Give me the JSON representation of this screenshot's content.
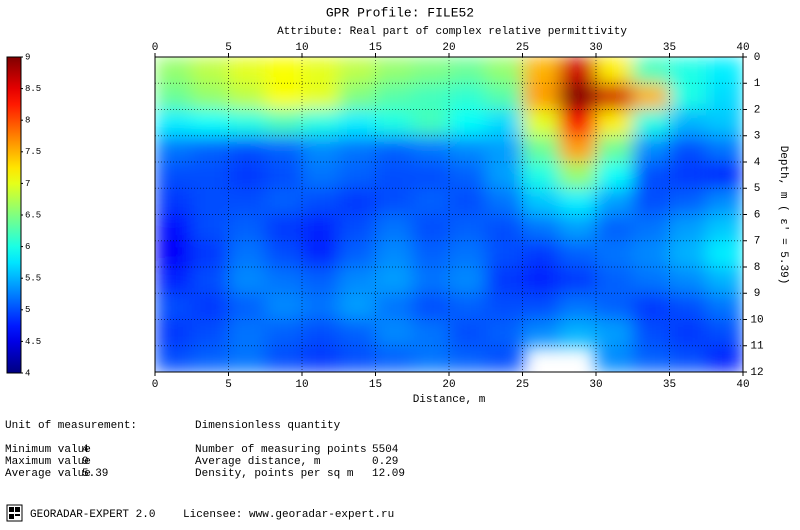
{
  "chart_data": {
    "type": "heatmap",
    "title": "GPR Profile: FILE52",
    "subtitle": "Attribute:  Real part of complex relative permittivity",
    "x_label": "Distance, m",
    "y_label": "Depth, m ( ε' = 5.39)",
    "colormap": "jet",
    "grid": true,
    "xlim": [
      0,
      40
    ],
    "ylim": [
      0,
      12
    ],
    "zlim": [
      4,
      9
    ],
    "xticks": [
      0,
      5,
      10,
      15,
      20,
      25,
      30,
      35,
      40
    ],
    "yticks": [
      0,
      1,
      2,
      3,
      4,
      5,
      6,
      7,
      8,
      9,
      10,
      11,
      12
    ],
    "zticks": [
      4,
      4.5,
      5,
      5.5,
      6,
      6.5,
      7,
      7.5,
      8,
      8.5,
      9
    ],
    "xbins": [
      0,
      2.5,
      5,
      7.5,
      10,
      12.5,
      15,
      17.5,
      20,
      22.5,
      25,
      27.5,
      30,
      32.5,
      35,
      37.5,
      40
    ],
    "ybins": [
      0,
      1,
      2,
      3,
      4,
      5,
      6,
      7,
      8,
      9,
      10,
      11,
      12
    ],
    "values": [
      [
        6.6,
        6.8,
        7.0,
        7.1,
        7.0,
        6.8,
        6.6,
        6.5,
        6.4,
        6.6,
        7.5,
        8.6,
        7.2,
        6.2,
        6.0,
        5.8
      ],
      [
        6.4,
        6.6,
        6.8,
        7.1,
        7.0,
        6.5,
        6.3,
        6.2,
        6.1,
        6.3,
        7.6,
        9.0,
        8.6,
        7.5,
        6.0,
        5.7
      ],
      [
        5.8,
        5.9,
        6.0,
        6.2,
        6.0,
        5.8,
        6.0,
        6.2,
        5.9,
        5.7,
        7.0,
        8.4,
        7.2,
        6.0,
        5.5,
        5.6
      ],
      [
        5.2,
        5.1,
        5.0,
        5.1,
        5.3,
        5.2,
        5.1,
        5.2,
        5.3,
        5.4,
        6.4,
        7.6,
        6.4,
        5.3,
        5.0,
        5.2
      ],
      [
        5.0,
        5.0,
        4.9,
        5.0,
        5.2,
        5.1,
        5.0,
        5.0,
        5.1,
        5.4,
        6.0,
        6.6,
        5.9,
        5.0,
        4.9,
        4.8
      ],
      [
        4.9,
        5.0,
        5.0,
        5.1,
        5.0,
        4.9,
        5.0,
        5.1,
        5.0,
        5.2,
        5.6,
        5.8,
        5.4,
        5.0,
        5.1,
        5.3
      ],
      [
        4.7,
        5.0,
        5.1,
        4.9,
        4.8,
        5.0,
        5.2,
        5.0,
        5.1,
        5.0,
        5.2,
        5.4,
        5.1,
        5.2,
        5.4,
        5.6
      ],
      [
        4.6,
        4.9,
        5.2,
        5.0,
        4.8,
        5.1,
        5.3,
        5.1,
        5.2,
        5.0,
        4.9,
        5.1,
        5.2,
        5.3,
        5.5,
        5.8
      ],
      [
        4.8,
        5.0,
        5.3,
        5.2,
        5.1,
        5.3,
        5.4,
        5.2,
        5.3,
        4.9,
        4.8,
        4.9,
        5.1,
        5.2,
        5.3,
        5.5
      ],
      [
        5.0,
        4.9,
        5.1,
        5.3,
        5.2,
        5.4,
        5.2,
        5.0,
        5.1,
        5.0,
        5.0,
        5.2,
        5.1,
        4.9,
        5.0,
        5.2
      ],
      [
        4.9,
        5.0,
        5.2,
        5.1,
        5.0,
        5.1,
        5.3,
        5.2,
        5.0,
        5.1,
        5.3,
        5.5,
        5.4,
        5.0,
        4.9,
        5.0
      ],
      [
        5.0,
        5.1,
        5.2,
        5.0,
        4.9,
        5.0,
        5.1,
        5.2,
        5.1,
        5.0,
        null,
        null,
        5.3,
        5.1,
        5.0,
        4.8
      ]
    ]
  },
  "info": {
    "unit_label": "Unit of measurement:",
    "unit_value": "Dimensionless quantity",
    "left": [
      [
        "Minimum value",
        4
      ],
      [
        "Maximum value",
        9
      ],
      [
        "Average value",
        5.39
      ]
    ],
    "right": [
      [
        "Number of measuring points",
        5504
      ],
      [
        "Average distance, m",
        0.29
      ],
      [
        "Density, points per sq m",
        12.09
      ]
    ]
  },
  "footer": {
    "product": "GEORADAR-EXPERT 2.0",
    "licensee": "Licensee: www.georadar-expert.ru"
  }
}
